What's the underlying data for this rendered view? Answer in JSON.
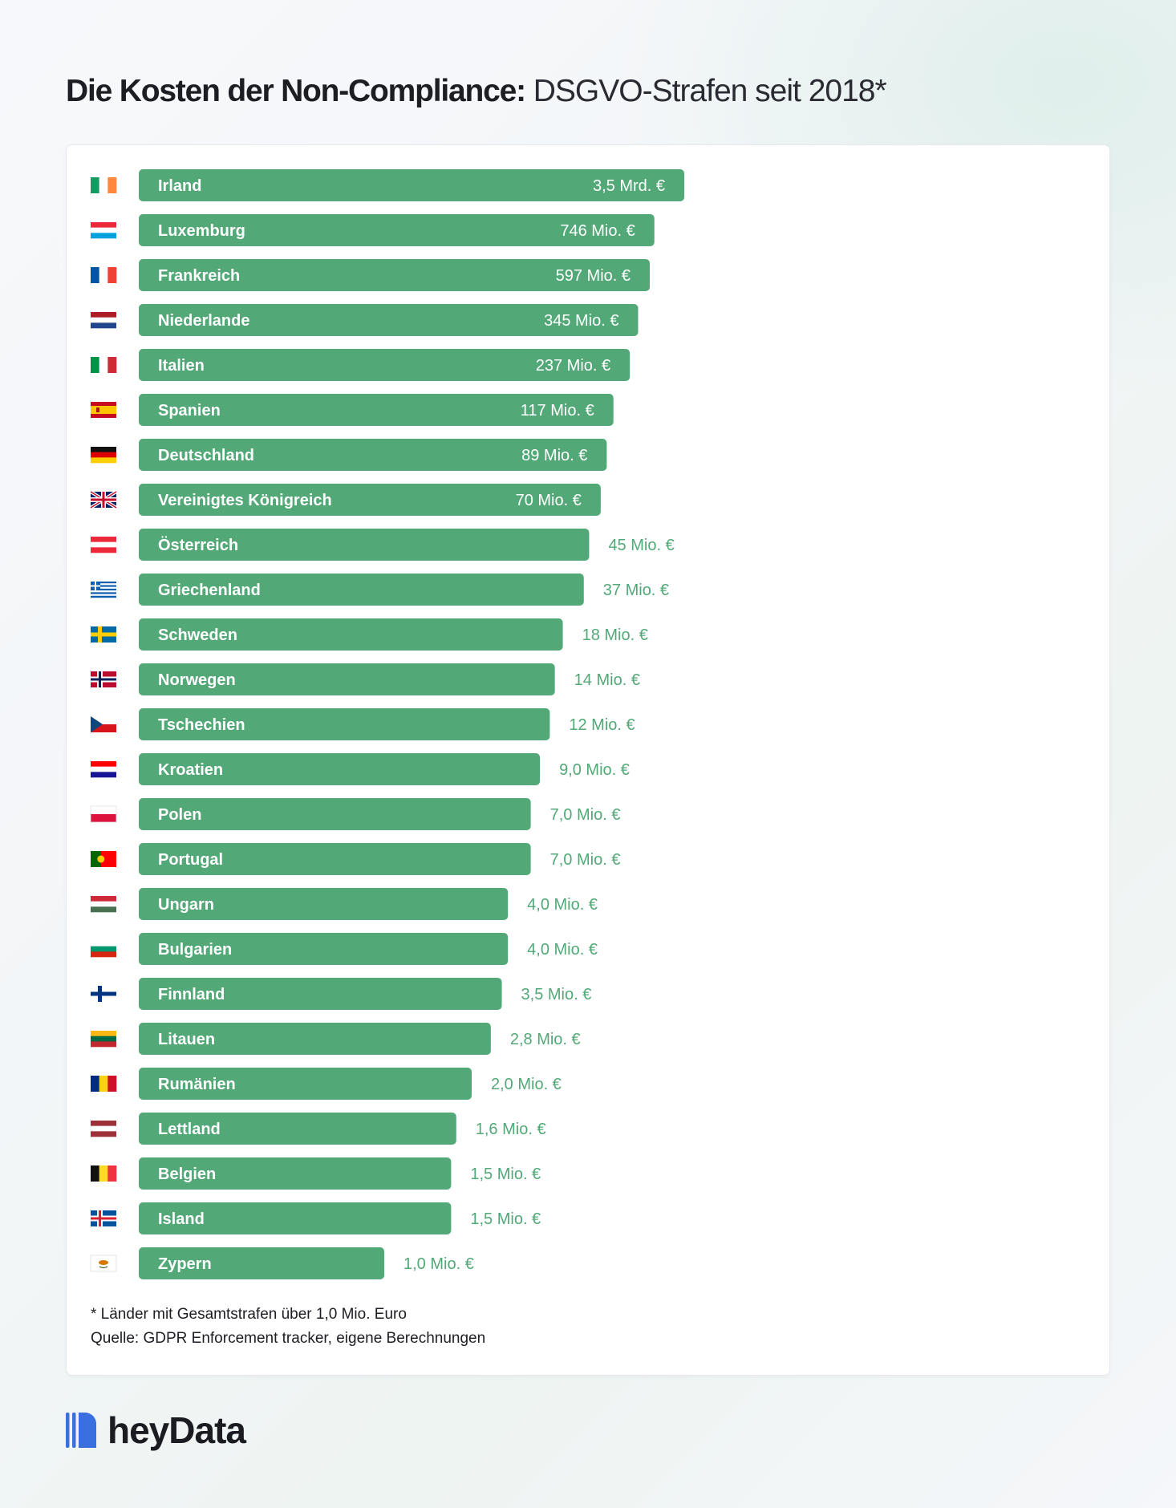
{
  "title": {
    "bold": "Die Kosten der Non-Compliance:",
    "light": "DSGVO-Strafen seit 2018*"
  },
  "colors": {
    "bar": "#52a877",
    "value_inside": "#ffffff",
    "value_outside": "#52a877"
  },
  "chart_data": {
    "type": "bar",
    "orientation": "horizontal",
    "unit": "EUR",
    "categories": [
      "Irland",
      "Luxemburg",
      "Frankreich",
      "Niederlande",
      "Italien",
      "Spanien",
      "Deutschland",
      "Vereinigtes Königreich",
      "Österreich",
      "Griechenland",
      "Schweden",
      "Norwegen",
      "Tschechien",
      "Kroatien",
      "Polen",
      "Portugal",
      "Ungarn",
      "Bulgarien",
      "Finnland",
      "Litauen",
      "Rumänien",
      "Lettland",
      "Belgien",
      "Island",
      "Zypern"
    ],
    "flags": [
      "ie",
      "lu",
      "fr",
      "nl",
      "it",
      "es",
      "de",
      "gb",
      "at",
      "gr",
      "se",
      "no",
      "cz",
      "hr",
      "pl",
      "pt",
      "hu",
      "bg",
      "fi",
      "lt",
      "ro",
      "lv",
      "be",
      "is",
      "cy"
    ],
    "values": [
      3500000000,
      746000000,
      597000000,
      345000000,
      237000000,
      117000000,
      89000000,
      70000000,
      45000000,
      37000000,
      18000000,
      14000000,
      12000000,
      9000000,
      7000000,
      7000000,
      4000000,
      4000000,
      3500000,
      2800000,
      2000000,
      1600000,
      1500000,
      1500000,
      1000000
    ],
    "value_labels": [
      "3,5 Mrd. €",
      "746 Mio. €",
      "597 Mio. €",
      "345 Mio. €",
      "237 Mio. €",
      "117 Mio. €",
      "89 Mio. €",
      "70 Mio. €",
      "45 Mio. €",
      "37 Mio. €",
      "18 Mio. €",
      "14 Mio. €",
      "12 Mio. €",
      "9,0 Mio. €",
      "7,0 Mio. €",
      "7,0 Mio. €",
      "4,0 Mio. €",
      "4,0 Mio. €",
      "3,5 Mio. €",
      "2,8 Mio. €",
      "2,0 Mio. €",
      "1,6 Mio. €",
      "1,5 Mio. €",
      "1,5 Mio. €",
      "1,0 Mio. €"
    ],
    "title": "Die Kosten der Non-Compliance: DSGVO-Strafen seit 2018*",
    "xlabel": "",
    "ylabel": "",
    "legend": "none",
    "grid": false
  },
  "notes": {
    "footnote": "* Länder mit Gesamtstrafen über 1,0 Mio. Euro",
    "source": "Quelle: GDPR Enforcement tracker, eigene Berechnungen"
  },
  "brand": {
    "name": "heyData"
  }
}
